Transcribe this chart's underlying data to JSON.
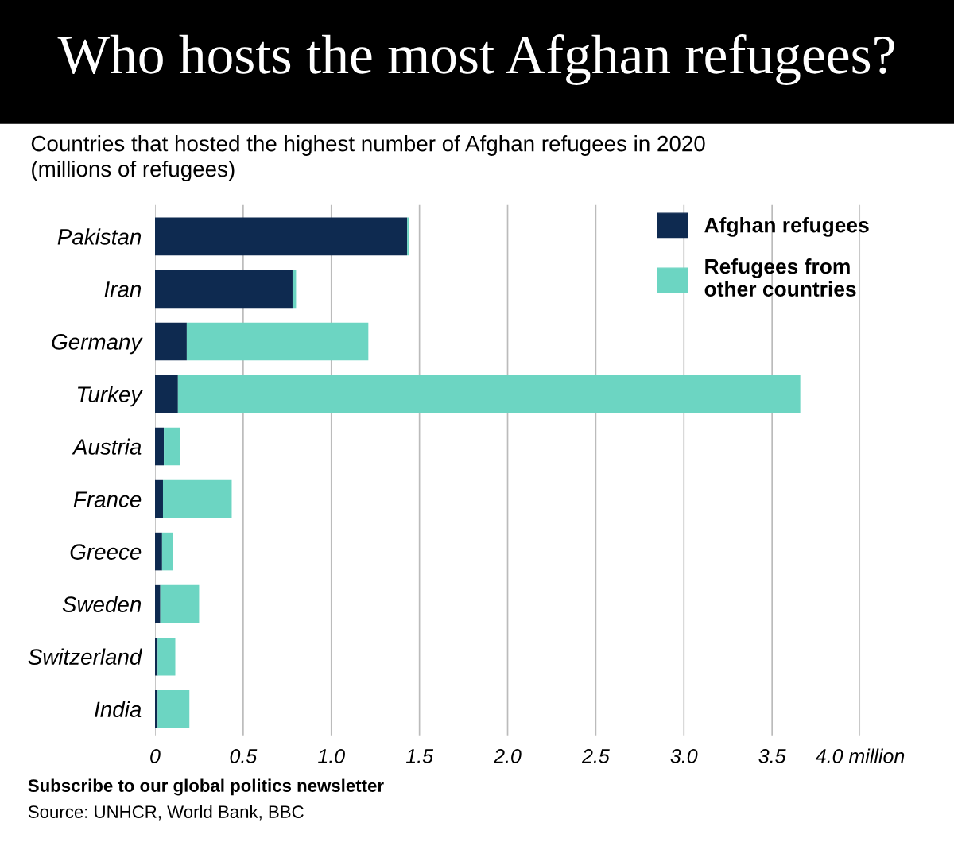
{
  "chart_data": {
    "type": "bar",
    "orientation": "horizontal",
    "stacked": true,
    "title": "Who hosts the most Afghan refugees?",
    "subtitle": "Countries that hosted the highest number of Afghan refugees in 2020\n(millions of refugees)",
    "categories": [
      "Pakistan",
      "Iran",
      "Germany",
      "Turkey",
      "Austria",
      "France",
      "Greece",
      "Sweden",
      "Switzerland",
      "India"
    ],
    "series": [
      {
        "name": "Afghan refugees",
        "color": "#0e2a50",
        "values": [
          1.43,
          0.78,
          0.18,
          0.13,
          0.05,
          0.045,
          0.04,
          0.03,
          0.015,
          0.015
        ]
      },
      {
        "name": "Refugees from\nother countries",
        "color": "#6cd5c2",
        "values": [
          0.01,
          0.02,
          1.03,
          3.53,
          0.09,
          0.39,
          0.06,
          0.22,
          0.1,
          0.18
        ]
      }
    ],
    "xlim": [
      0,
      4.0
    ],
    "xticks": [
      0,
      0.5,
      {
        "value": 1.0,
        "label": "1.0"
      },
      1.5,
      {
        "value": 2.0,
        "label": "2.0"
      },
      2.5,
      {
        "value": 3.0,
        "label": "3.0"
      },
      3.5,
      {
        "value": 4.0,
        "label": "4.0 million"
      }
    ],
    "grid": "x",
    "legend": "top right",
    "annotations": [
      "Subscribe to our global politics newsletter",
      "Source: UNHCR, World Bank, BBC"
    ]
  }
}
